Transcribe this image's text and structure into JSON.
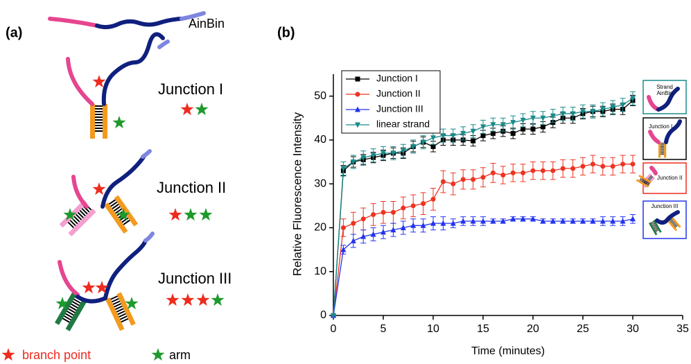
{
  "panel_a": {
    "label": "(a)",
    "structures": [
      "AinBin",
      "Junction I",
      "Junction II",
      "Junction III"
    ],
    "legend": [
      "branch point",
      "arm"
    ]
  },
  "insets": [
    [
      "Strand",
      "AinBin"
    ],
    [
      "Junction I"
    ],
    [
      "Junction II"
    ],
    [
      "Junction III"
    ]
  ],
  "chart_data": {
    "type": "line",
    "panel_label": "(b)",
    "xlabel": "Time (minutes)",
    "ylabel": "Relative Fluorescence Intensity",
    "x": [
      0,
      1,
      2,
      3,
      4,
      5,
      6,
      7,
      8,
      9,
      10,
      11,
      12,
      13,
      14,
      15,
      16,
      17,
      18,
      19,
      20,
      21,
      22,
      23,
      24,
      25,
      26,
      27,
      28,
      29,
      30
    ],
    "xlim": [
      0,
      35
    ],
    "xticks": [
      0,
      5,
      10,
      15,
      20,
      25,
      30,
      35
    ],
    "ylim": [
      0,
      55
    ],
    "yticks": [
      0,
      10,
      20,
      30,
      40,
      50
    ],
    "legend": "upper left",
    "series": [
      {
        "name": "Junction I",
        "color": "#000000",
        "marker": "square",
        "values": [
          0,
          33,
          35,
          35.5,
          36,
          36.5,
          37,
          37,
          38.5,
          39.5,
          38.5,
          40,
          40,
          40,
          39.8,
          41,
          41.5,
          42,
          41.5,
          42.5,
          42.5,
          43,
          44,
          45,
          45,
          46,
          46.5,
          46.5,
          47,
          47,
          49
        ],
        "errors": [
          0,
          1.2,
          1.2,
          1.2,
          1.2,
          1.2,
          1.2,
          1.2,
          1.2,
          1.2,
          1.2,
          1.2,
          1.2,
          1.2,
          1.2,
          1.2,
          1.2,
          1.2,
          1.2,
          1.2,
          1.2,
          1.2,
          1.2,
          1.2,
          1.2,
          1.2,
          1.2,
          1.2,
          1.2,
          1.2,
          1.2
        ]
      },
      {
        "name": "Junction II",
        "color": "#ee3322",
        "marker": "circle",
        "values": [
          0,
          20,
          21,
          22,
          23,
          23.5,
          23.5,
          24.5,
          25,
          25.5,
          26.5,
          30.5,
          30,
          31,
          31,
          31.5,
          32.5,
          32,
          32.5,
          32.5,
          33,
          33,
          33,
          33.5,
          33.5,
          34,
          34.5,
          34,
          34,
          34.5,
          34.5
        ],
        "errors": [
          0,
          2,
          2.5,
          2.5,
          2.5,
          2.5,
          2.5,
          2.5,
          2.5,
          2.5,
          2.5,
          2.5,
          2.5,
          2.2,
          2.2,
          2.2,
          2.2,
          2,
          2,
          2,
          2,
          2,
          2,
          2,
          2,
          2,
          2,
          2,
          2,
          2,
          2
        ]
      },
      {
        "name": "Junction III",
        "color": "#2233ee",
        "marker": "triangle-up",
        "values": [
          0,
          15,
          17,
          18,
          18.5,
          19,
          19.5,
          20,
          20.5,
          20.5,
          21,
          21,
          21,
          21.5,
          21.5,
          21.5,
          21.5,
          21.5,
          22,
          22,
          22,
          21.5,
          21.5,
          21.5,
          21.5,
          21.5,
          21.5,
          21.5,
          21.5,
          21.5,
          22
        ],
        "errors": [
          0,
          1,
          1.5,
          1.5,
          1.5,
          1.5,
          1.5,
          1.5,
          1.5,
          1.5,
          1.5,
          1.5,
          1,
          1,
          1,
          1,
          0.5,
          0.5,
          0.5,
          0.5,
          0.5,
          0.5,
          0.5,
          0.5,
          0.5,
          0.5,
          0.5,
          1,
          1,
          1,
          1
        ]
      },
      {
        "name": "linear strand",
        "color": "#1a8a8a",
        "marker": "triangle-down",
        "values": [
          0,
          33.5,
          35,
          36,
          36.5,
          37,
          37,
          37.5,
          38.5,
          39.5,
          40.5,
          41,
          41,
          41.5,
          42,
          43,
          43.5,
          43.5,
          44,
          44.5,
          45,
          45,
          45.5,
          46,
          46,
          46.5,
          46.5,
          47,
          47.5,
          48,
          49.5
        ],
        "errors": [
          0,
          1.5,
          1.5,
          1.5,
          1.5,
          1.5,
          1.5,
          1.5,
          1.5,
          1.5,
          1.5,
          1.5,
          1.5,
          1.5,
          1.5,
          1.5,
          1.5,
          1.5,
          1.5,
          1.5,
          1.5,
          1.5,
          1.5,
          1.5,
          1.5,
          1.5,
          1.5,
          1.5,
          1.5,
          1.5,
          1.5
        ]
      }
    ]
  }
}
